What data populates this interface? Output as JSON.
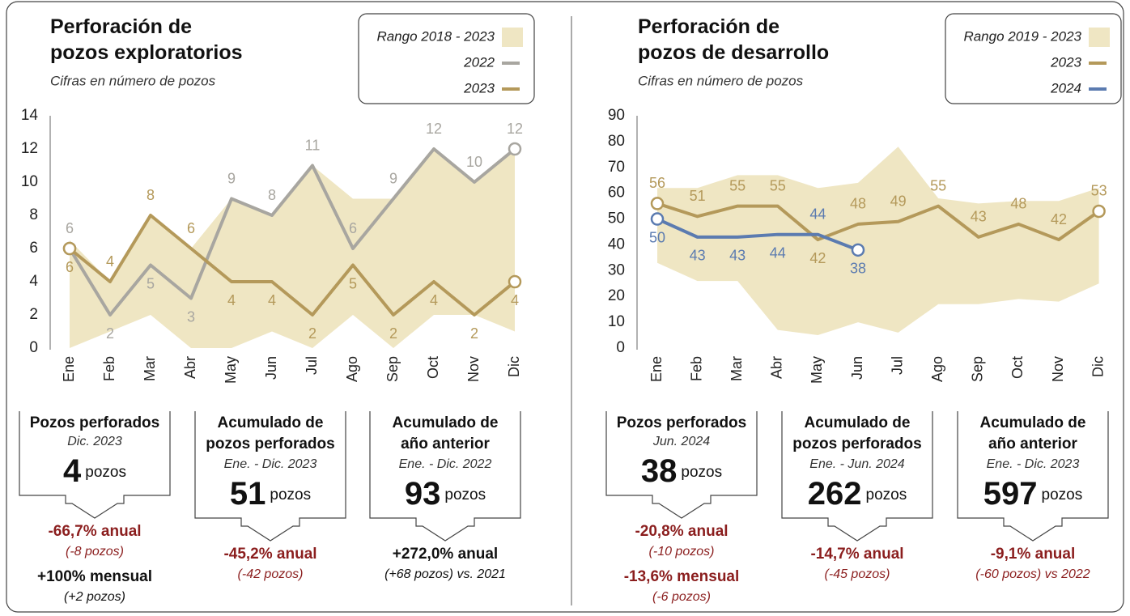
{
  "chart_data": [
    {
      "type": "line",
      "title": "Perforación de\npozos exploratorios",
      "subtitle": "Cifras en número de pozos",
      "categories": [
        "Ene",
        "Feb",
        "Mar",
        "Abr",
        "May",
        "Jun",
        "Jul",
        "Ago",
        "Sep",
        "Oct",
        "Nov",
        "Dic"
      ],
      "range": {
        "name": "Rango 2018 - 2023",
        "color": "#efe6c3",
        "upper": [
          6.5,
          4,
          8,
          6,
          9,
          8,
          11,
          9,
          9,
          12,
          10,
          12
        ],
        "lower": [
          0,
          1,
          2,
          0,
          0,
          1,
          0,
          2,
          0,
          2,
          2,
          1
        ]
      },
      "series": [
        {
          "name": "2022",
          "color": "#a8a6a0",
          "values": [
            6,
            2,
            5,
            3,
            9,
            8,
            11,
            6,
            9,
            12,
            10,
            12
          ]
        },
        {
          "name": "2023",
          "color": "#b4995a",
          "values": [
            6,
            4,
            8,
            6,
            4,
            4,
            2,
            5,
            2,
            4,
            2,
            4
          ]
        }
      ],
      "ylim": [
        0,
        14
      ],
      "yticks": [
        0,
        2,
        4,
        6,
        8,
        10,
        12,
        14
      ],
      "grid": false,
      "legend": "top-right"
    },
    {
      "type": "line",
      "title": "Perforación de\npozos de desarrollo",
      "subtitle": "Cifras en número de pozos",
      "categories": [
        "Ene",
        "Feb",
        "Mar",
        "Abr",
        "May",
        "Jun",
        "Jul",
        "Ago",
        "Sep",
        "Oct",
        "Nov",
        "Dic"
      ],
      "range": {
        "name": "Rango 2019 - 2023",
        "color": "#efe6c3",
        "upper": [
          62,
          62,
          67,
          67,
          62,
          64,
          78,
          58,
          56,
          57,
          57,
          62
        ],
        "lower": [
          33,
          26,
          26,
          7,
          5,
          10,
          6,
          17,
          17,
          19,
          18,
          25
        ]
      },
      "series": [
        {
          "name": "2023",
          "color": "#b4995a",
          "values": [
            56,
            51,
            55,
            55,
            42,
            48,
            49,
            55,
            43,
            48,
            42,
            53
          ]
        },
        {
          "name": "2024",
          "color": "#5b7bb0",
          "values": [
            50,
            43,
            43,
            44,
            44,
            38,
            null,
            null,
            null,
            null,
            null,
            null
          ]
        }
      ],
      "ylim": [
        0,
        90
      ],
      "yticks": [
        0,
        10,
        20,
        30,
        40,
        50,
        60,
        70,
        80,
        90
      ],
      "grid": false,
      "legend": "top-right"
    }
  ],
  "stats": [
    [
      {
        "title": "Pozos perforados",
        "period": "Dic. 2023",
        "value": 4,
        "unit": "pozos",
        "changes": [
          {
            "text": "-66,7% anual",
            "color": "#8b1e1e"
          },
          {
            "text": "(-8 pozos)",
            "color": "#8b1e1e",
            "italic": true
          },
          {
            "text": "+100% mensual",
            "color": "#111111"
          },
          {
            "text": "(+2 pozos)",
            "color": "#111111",
            "italic": true
          }
        ]
      },
      {
        "title": "Acumulado de\npozos perforados",
        "period": "Ene. - Dic. 2023",
        "value": 51,
        "unit": "pozos",
        "changes": [
          {
            "text": "-45,2% anual",
            "color": "#8b1e1e"
          },
          {
            "text": "(-42 pozos)",
            "color": "#8b1e1e",
            "italic": true
          }
        ]
      },
      {
        "title": "Acumulado de\naño anterior",
        "period": "Ene. - Dic. 2022",
        "value": 93,
        "unit": "pozos",
        "changes": [
          {
            "text": "+272,0% anual",
            "color": "#111111"
          },
          {
            "text": "(+68 pozos) vs. 2021",
            "color": "#111111",
            "italic": true
          }
        ]
      }
    ],
    [
      {
        "title": "Pozos perforados",
        "period": "Jun. 2024",
        "value": 38,
        "unit": "pozos",
        "changes": [
          {
            "text": "-20,8% anual",
            "color": "#8b1e1e"
          },
          {
            "text": "(-10 pozos)",
            "color": "#8b1e1e",
            "italic": true
          },
          {
            "text": "-13,6% mensual",
            "color": "#8b1e1e"
          },
          {
            "text": "(-6 pozos)",
            "color": "#8b1e1e",
            "italic": true
          }
        ]
      },
      {
        "title": "Acumulado de\npozos perforados",
        "period": "Ene. - Jun. 2024",
        "value": 262,
        "unit": "pozos",
        "changes": [
          {
            "text": "-14,7% anual",
            "color": "#8b1e1e"
          },
          {
            "text": "(-45 pozos)",
            "color": "#8b1e1e",
            "italic": true
          }
        ]
      },
      {
        "title": "Acumulado de\naño anterior",
        "period": "Ene. - Dic. 2023",
        "value": 597,
        "unit": "pozos",
        "changes": [
          {
            "text": "-9,1% anual",
            "color": "#8b1e1e"
          },
          {
            "text": "(-60 pozos) vs 2022",
            "color": "#8b1e1e",
            "italic": true
          }
        ]
      }
    ]
  ]
}
